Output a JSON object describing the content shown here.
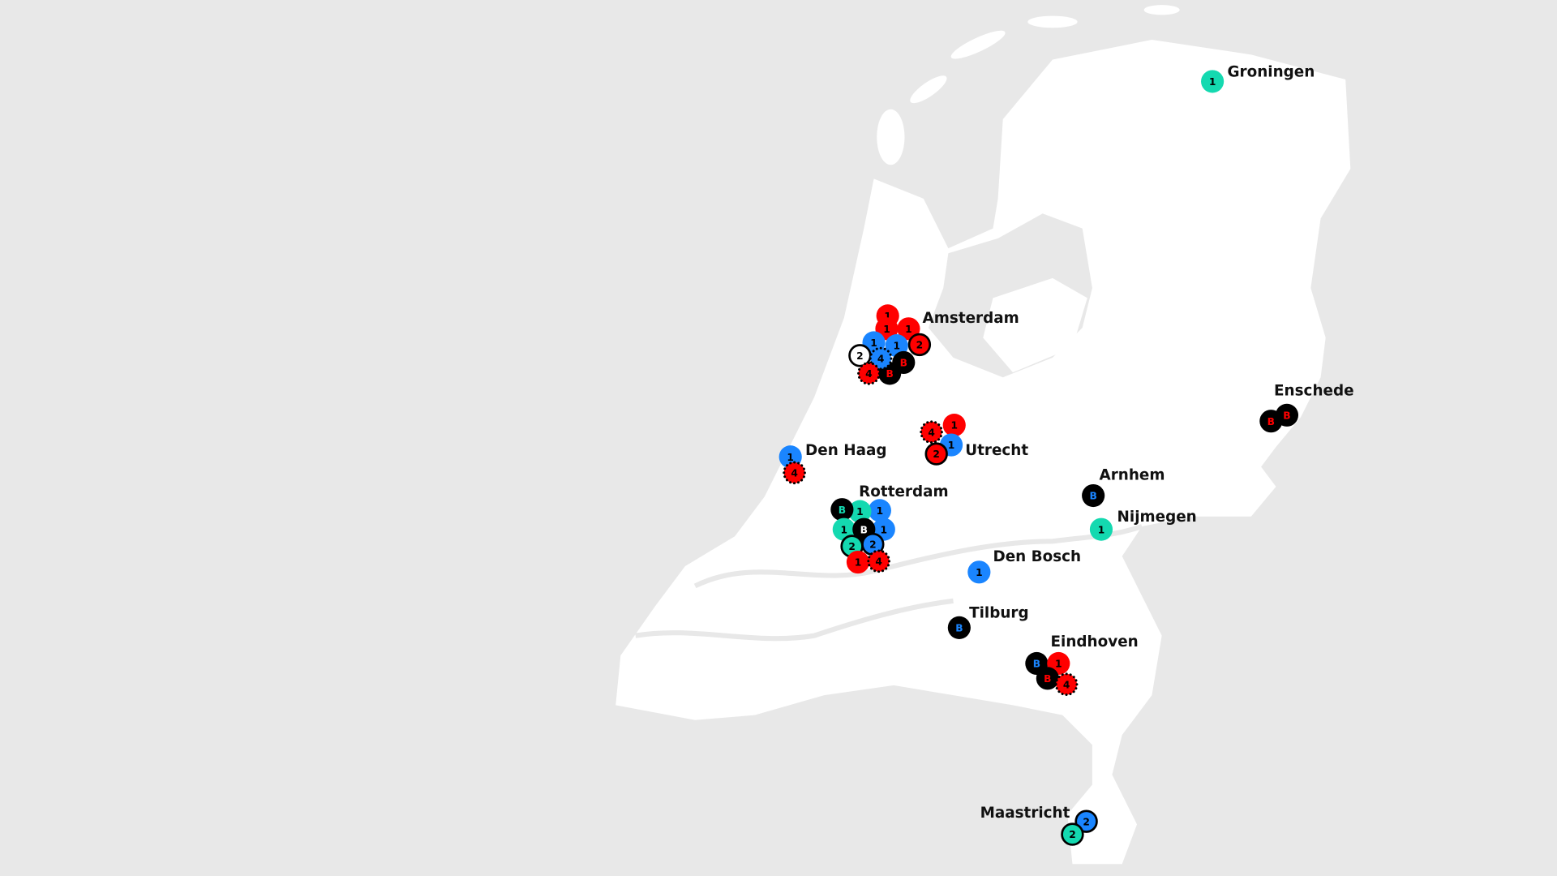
{
  "colors": {
    "background": "#e8e8e8",
    "land": "#ffffff",
    "water": "#e8e8e8",
    "red": "#ff0000",
    "blue": "#1a85ff",
    "teal": "#14d9b0",
    "black": "#000000"
  },
  "cities": [
    "Groningen",
    "Amsterdam",
    "Enschede",
    "Den Haag",
    "Utrecht",
    "Rotterdam",
    "Arnhem",
    "Nijmegen",
    "Den Bosch",
    "Tilburg",
    "Eindhoven",
    "Maastricht"
  ],
  "markers": [
    {
      "city": "Groningen",
      "label": "1",
      "fill": "teal",
      "text": "black",
      "style": "plain"
    },
    {
      "city": "Amsterdam",
      "label": "1",
      "fill": "red",
      "text": "black",
      "style": "plain"
    },
    {
      "city": "Amsterdam",
      "label": "1",
      "fill": "red",
      "text": "black",
      "style": "plain"
    },
    {
      "city": "Amsterdam",
      "label": "1",
      "fill": "red",
      "text": "black",
      "style": "plain"
    },
    {
      "city": "Amsterdam",
      "label": "2",
      "fill": "red",
      "text": "black",
      "style": "ring"
    },
    {
      "city": "Amsterdam",
      "label": "1",
      "fill": "blue",
      "text": "black",
      "style": "plain"
    },
    {
      "city": "Amsterdam",
      "label": "1",
      "fill": "blue",
      "text": "black",
      "style": "plain"
    },
    {
      "city": "Amsterdam",
      "label": "2",
      "fill": "white",
      "text": "black",
      "style": "ring"
    },
    {
      "city": "Amsterdam",
      "label": "B",
      "fill": "black",
      "text": "red",
      "style": "plain"
    },
    {
      "city": "Amsterdam",
      "label": "B",
      "fill": "black",
      "text": "red",
      "style": "plain"
    },
    {
      "city": "Amsterdam",
      "label": "4",
      "fill": "blue",
      "text": "black",
      "style": "dotted"
    },
    {
      "city": "Amsterdam",
      "label": "4",
      "fill": "red",
      "text": "black",
      "style": "dotted"
    },
    {
      "city": "Utrecht",
      "label": "1",
      "fill": "red",
      "text": "black",
      "style": "plain"
    },
    {
      "city": "Utrecht",
      "label": "4",
      "fill": "red",
      "text": "black",
      "style": "dotted"
    },
    {
      "city": "Utrecht",
      "label": "1",
      "fill": "blue",
      "text": "black",
      "style": "plain"
    },
    {
      "city": "Utrecht",
      "label": "2",
      "fill": "red",
      "text": "black",
      "style": "ring"
    },
    {
      "city": "Den Haag",
      "label": "1",
      "fill": "blue",
      "text": "black",
      "style": "plain"
    },
    {
      "city": "Den Haag",
      "label": "4",
      "fill": "red",
      "text": "black",
      "style": "dotted"
    },
    {
      "city": "Rotterdam",
      "label": "1",
      "fill": "blue",
      "text": "black",
      "style": "plain"
    },
    {
      "city": "Rotterdam",
      "label": "1",
      "fill": "blue",
      "text": "black",
      "style": "plain"
    },
    {
      "city": "Rotterdam",
      "label": "1",
      "fill": "teal",
      "text": "black",
      "style": "plain"
    },
    {
      "city": "Rotterdam",
      "label": "B",
      "fill": "black",
      "text": "teal",
      "style": "plain"
    },
    {
      "city": "Rotterdam",
      "label": "1",
      "fill": "teal",
      "text": "black",
      "style": "plain"
    },
    {
      "city": "Rotterdam",
      "label": "B",
      "fill": "black",
      "text": "white",
      "style": "plain"
    },
    {
      "city": "Rotterdam",
      "label": "2",
      "fill": "teal",
      "text": "black",
      "style": "ring"
    },
    {
      "city": "Rotterdam",
      "label": "2",
      "fill": "blue",
      "text": "black",
      "style": "ring"
    },
    {
      "city": "Rotterdam",
      "label": "1",
      "fill": "red",
      "text": "black",
      "style": "plain"
    },
    {
      "city": "Rotterdam",
      "label": "4",
      "fill": "red",
      "text": "black",
      "style": "dotted"
    },
    {
      "city": "Arnhem",
      "label": "B",
      "fill": "black",
      "text": "blue",
      "style": "plain"
    },
    {
      "city": "Nijmegen",
      "label": "1",
      "fill": "teal",
      "text": "black",
      "style": "plain"
    },
    {
      "city": "Den Bosch",
      "label": "1",
      "fill": "blue",
      "text": "black",
      "style": "plain"
    },
    {
      "city": "Tilburg",
      "label": "B",
      "fill": "black",
      "text": "blue",
      "style": "plain"
    },
    {
      "city": "Eindhoven",
      "label": "B",
      "fill": "black",
      "text": "blue",
      "style": "plain"
    },
    {
      "city": "Eindhoven",
      "label": "1",
      "fill": "red",
      "text": "black",
      "style": "plain"
    },
    {
      "city": "Eindhoven",
      "label": "B",
      "fill": "black",
      "text": "red",
      "style": "plain"
    },
    {
      "city": "Eindhoven",
      "label": "4",
      "fill": "red",
      "text": "black",
      "style": "dotted"
    },
    {
      "city": "Enschede",
      "label": "B",
      "fill": "black",
      "text": "red",
      "style": "plain"
    },
    {
      "city": "Enschede",
      "label": "B",
      "fill": "black",
      "text": "red",
      "style": "plain"
    },
    {
      "city": "Maastricht",
      "label": "2",
      "fill": "blue",
      "text": "black",
      "style": "ring"
    },
    {
      "city": "Maastricht",
      "label": "2",
      "fill": "teal",
      "text": "black",
      "style": "ring"
    }
  ]
}
